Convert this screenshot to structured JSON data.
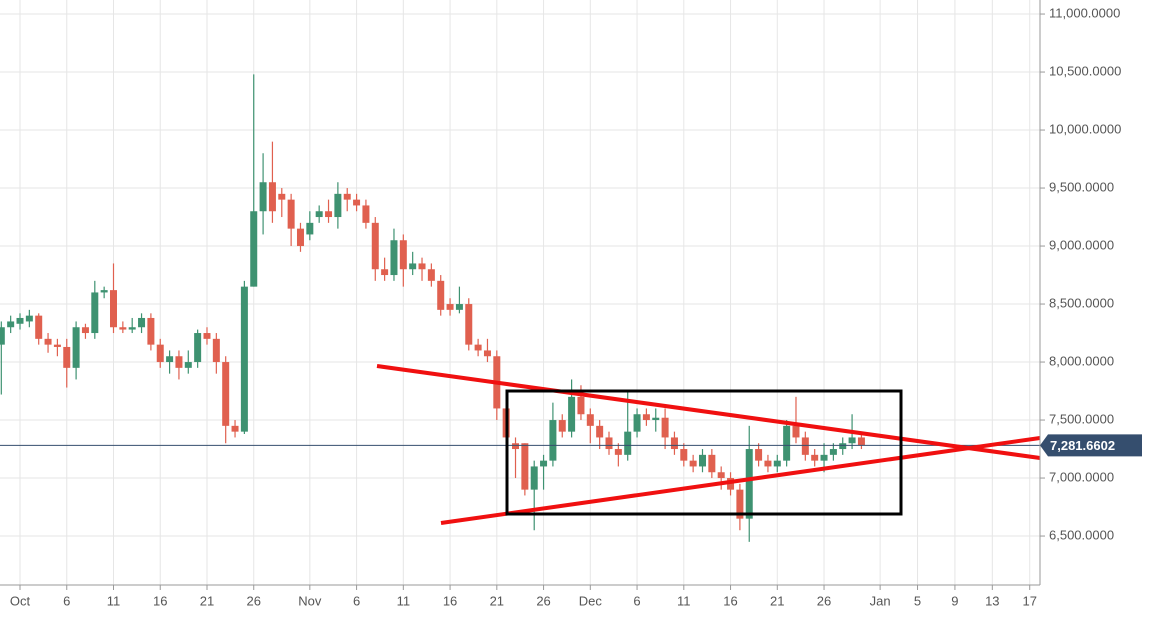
{
  "chart_data": {
    "type": "candlestick",
    "x": [
      -2,
      -1,
      0,
      1,
      2,
      3,
      4,
      5,
      6,
      7,
      8,
      9,
      10,
      11,
      12,
      13,
      14,
      15,
      16,
      17,
      18,
      19,
      20,
      21,
      22,
      23,
      24,
      25,
      26,
      27,
      28,
      29,
      30,
      31,
      32,
      33,
      34,
      35,
      36,
      37,
      38,
      39,
      40,
      41,
      42,
      43,
      44,
      45,
      46,
      47,
      48,
      49,
      50,
      51,
      52,
      53,
      54,
      55,
      56,
      57,
      58,
      59,
      60,
      61,
      62,
      63,
      64,
      65,
      66,
      67,
      68,
      69,
      70,
      71,
      72,
      73,
      74,
      75,
      76,
      77,
      78,
      79,
      80,
      81,
      82,
      83,
      84,
      85,
      86,
      87,
      88,
      89,
      90
    ],
    "open": [
      8150,
      8300,
      8330,
      8350,
      8400,
      8200,
      8150,
      8130,
      7950,
      8300,
      8250,
      8600,
      8620,
      8300,
      8280,
      8300,
      8380,
      8150,
      8000,
      8050,
      7950,
      8000,
      8250,
      8200,
      8000,
      7450,
      7400,
      8650,
      9300,
      9550,
      9450,
      9400,
      9150,
      9100,
      9250,
      9300,
      9250,
      9450,
      9400,
      9350,
      9200,
      8800,
      8750,
      9050,
      8800,
      8850,
      8800,
      8700,
      8500,
      8450,
      8500,
      8150,
      8100,
      8050,
      7600,
      7300,
      7300,
      6900,
      7100,
      7150,
      7500,
      7400,
      7700,
      7550,
      7450,
      7350,
      7250,
      7200,
      7400,
      7550,
      7500,
      7520,
      7350,
      7250,
      7150,
      7100,
      7200,
      7050,
      7000,
      6900,
      6650,
      7250,
      7150,
      7100,
      7150,
      7450,
      7350,
      7200,
      7150,
      7200,
      7250,
      7300,
      7350
    ],
    "high": [
      8350,
      8400,
      8420,
      8450,
      8420,
      8250,
      8200,
      8200,
      8350,
      8330,
      8700,
      8650,
      8850,
      8350,
      8380,
      8420,
      8420,
      8200,
      8100,
      8100,
      8100,
      8280,
      8300,
      8250,
      8050,
      7500,
      8700,
      10480,
      9800,
      9900,
      9500,
      9450,
      9200,
      9300,
      9350,
      9400,
      9550,
      9500,
      9450,
      9400,
      9250,
      8900,
      9150,
      9100,
      8950,
      8900,
      8850,
      8750,
      8550,
      8650,
      8550,
      8200,
      8200,
      8100,
      7650,
      7350,
      7300,
      7150,
      7200,
      7650,
      7550,
      7850,
      7800,
      7600,
      7500,
      7400,
      7300,
      7750,
      7600,
      7600,
      7600,
      7600,
      7400,
      7300,
      7200,
      7250,
      7250,
      7100,
      7050,
      6950,
      7450,
      7300,
      7200,
      7200,
      7500,
      7700,
      7400,
      7250,
      7300,
      7300,
      7350,
      7550,
      7400
    ],
    "low": [
      7720,
      8250,
      8280,
      8300,
      8150,
      8080,
      8050,
      7780,
      7850,
      8200,
      8200,
      8550,
      8250,
      8250,
      8250,
      8250,
      8100,
      7950,
      7900,
      7850,
      7900,
      7950,
      8150,
      7900,
      7300,
      7350,
      7380,
      8650,
      9100,
      9200,
      9250,
      9000,
      8950,
      9050,
      9200,
      9200,
      9150,
      9300,
      9300,
      9150,
      8700,
      8700,
      8700,
      8650,
      8750,
      8700,
      8650,
      8400,
      8400,
      8420,
      8100,
      8050,
      8000,
      7500,
      7150,
      7000,
      6850,
      6550,
      6900,
      7100,
      7350,
      7350,
      7500,
      7300,
      7250,
      7200,
      7100,
      7150,
      7350,
      7450,
      7400,
      7250,
      7200,
      7100,
      7050,
      7050,
      7000,
      6900,
      6850,
      6550,
      6450,
      7100,
      7050,
      7050,
      7100,
      7300,
      7150,
      7100,
      7050,
      7150,
      7200,
      7250,
      7250
    ],
    "close": [
      8300,
      8350,
      8380,
      8400,
      8200,
      8150,
      8130,
      7950,
      8300,
      8250,
      8600,
      8620,
      8300,
      8280,
      8300,
      8380,
      8150,
      8000,
      8050,
      7950,
      8000,
      8250,
      8200,
      8000,
      7450,
      7400,
      8650,
      9300,
      9550,
      9300,
      9400,
      9150,
      9000,
      9200,
      9300,
      9250,
      9450,
      9400,
      9350,
      9200,
      8800,
      8750,
      9050,
      8800,
      8850,
      8800,
      8700,
      8450,
      8450,
      8500,
      8150,
      8100,
      8050,
      7600,
      7350,
      7250,
      6900,
      7100,
      7150,
      7500,
      7400,
      7700,
      7550,
      7450,
      7350,
      7250,
      7200,
      7400,
      7550,
      7500,
      7520,
      7350,
      7250,
      7150,
      7100,
      7200,
      7050,
      7000,
      6900,
      6650,
      7250,
      7150,
      7100,
      7150,
      7450,
      7350,
      7200,
      7150,
      7200,
      7250,
      7300,
      7350,
      7280
    ],
    "up_color": "#3e9271",
    "down_color": "#e0604f",
    "xlim": [
      -2.14,
      109.1
    ],
    "ylim": [
      6078,
      11121
    ],
    "xticks": [
      {
        "value": 0,
        "label": "Oct"
      },
      {
        "value": 5,
        "label": "6"
      },
      {
        "value": 10,
        "label": "11"
      },
      {
        "value": 15,
        "label": "16"
      },
      {
        "value": 20,
        "label": "21"
      },
      {
        "value": 25,
        "label": "26"
      },
      {
        "value": 31,
        "label": "Nov"
      },
      {
        "value": 36,
        "label": "6"
      },
      {
        "value": 41,
        "label": "11"
      },
      {
        "value": 46,
        "label": "16"
      },
      {
        "value": 51,
        "label": "21"
      },
      {
        "value": 56,
        "label": "26"
      },
      {
        "value": 61,
        "label": "Dec"
      },
      {
        "value": 66,
        "label": "6"
      },
      {
        "value": 71,
        "label": "11"
      },
      {
        "value": 76,
        "label": "16"
      },
      {
        "value": 81,
        "label": "21"
      },
      {
        "value": 86,
        "label": "26"
      },
      {
        "value": 92,
        "label": "Jan"
      },
      {
        "value": 96,
        "label": "5"
      },
      {
        "value": 100,
        "label": "9"
      },
      {
        "value": 104,
        "label": "13"
      },
      {
        "value": 108,
        "label": "17"
      }
    ],
    "yticks": [
      {
        "value": 6500,
        "label": "6,500.0000"
      },
      {
        "value": 7000,
        "label": "7,000.0000"
      },
      {
        "value": 7500,
        "label": "7,500.0000"
      },
      {
        "value": 8000,
        "label": "8,000.0000"
      },
      {
        "value": 8500,
        "label": "8,500.0000"
      },
      {
        "value": 9000,
        "label": "9,000.0000"
      },
      {
        "value": 9500,
        "label": "9,500.0000"
      },
      {
        "value": 10000,
        "label": "10,000.0000"
      },
      {
        "value": 10500,
        "label": "10,500.0000"
      },
      {
        "value": 11000,
        "label": "11,000.0000"
      }
    ],
    "grid": true,
    "last_price": {
      "value": 7281.6602,
      "label": "7,281.6602",
      "color": "#354e6e"
    }
  }
}
